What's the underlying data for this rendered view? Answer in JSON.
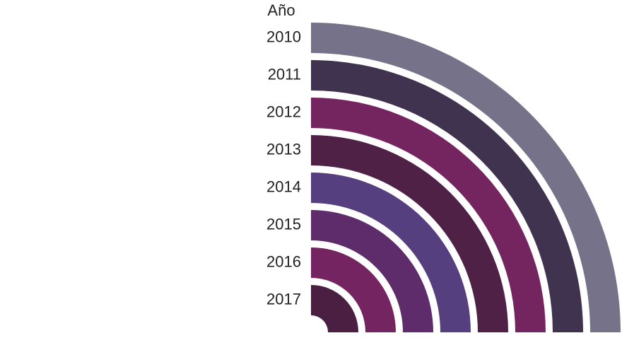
{
  "chart_data": {
    "type": "radial-bar",
    "title": "Año",
    "categories": [
      "2010",
      "2011",
      "2012",
      "2013",
      "2014",
      "2015",
      "2016",
      "2017"
    ],
    "values": [
      90,
      90,
      90,
      90,
      90,
      90,
      90,
      90
    ],
    "colors": [
      "#76728a",
      "#3f3350",
      "#74245f",
      "#4f2147",
      "#553f7e",
      "#5e2c6b",
      "#742461",
      "#4a1f42"
    ]
  }
}
